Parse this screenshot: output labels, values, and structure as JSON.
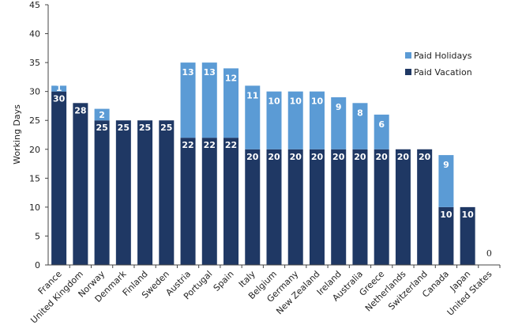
{
  "chart_data": {
    "type": "bar",
    "stacked": true,
    "ylabel": "Working Days",
    "ylim": [
      0,
      45
    ],
    "yticks": [
      0,
      5,
      10,
      15,
      20,
      25,
      30,
      35,
      40,
      45
    ],
    "grid": false,
    "legend_position": "right",
    "categories": [
      "France",
      "United Kingdom",
      "Norway",
      "Denmark",
      "Finland",
      "Sweden",
      "Austria",
      "Portugal",
      "Spain",
      "Italy",
      "Belgium",
      "Germany",
      "New Zealand",
      "Ireland",
      "Australia",
      "Greece",
      "Netherlands",
      "Switzerland",
      "Canada",
      "Japan",
      "United States"
    ],
    "series": [
      {
        "name": "Paid Vacation",
        "color": "#1f3864",
        "values": [
          30,
          28,
          25,
          25,
          25,
          25,
          22,
          22,
          22,
          20,
          20,
          20,
          20,
          20,
          20,
          20,
          20,
          20,
          10,
          10,
          0
        ]
      },
      {
        "name": "Paid Holidays",
        "color": "#5b9bd5",
        "values": [
          1,
          0,
          2,
          0,
          0,
          0,
          13,
          13,
          12,
          11,
          10,
          10,
          10,
          9,
          8,
          6,
          0,
          0,
          9,
          0,
          0
        ]
      }
    ],
    "zero_label": "0",
    "zero_label_category": "United States"
  }
}
